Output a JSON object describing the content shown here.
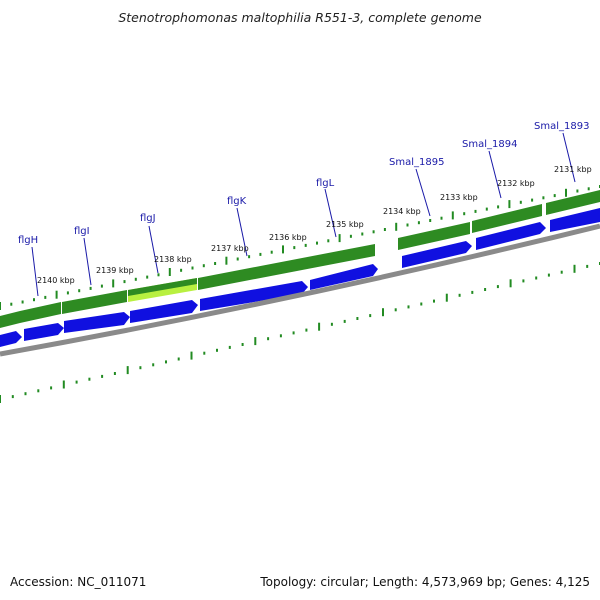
{
  "title": "Stenotrophomonas maltophilia R551-3, complete genome",
  "footer": {
    "accession": "Accession: NC_011071",
    "summary": "Topology: circular; Length: 4,573,969 bp; Genes: 4,125"
  },
  "colors": {
    "gene_forward": "#2e8b22",
    "gene_highlight": "#b8f040",
    "cds": "#1010e0",
    "backbone": "#8a8a8a",
    "ticks": "#228b22",
    "label": "#1a1aa8"
  },
  "genes": [
    {
      "id": "flgH",
      "label": "flgH"
    },
    {
      "id": "flgI",
      "label": "flgI"
    },
    {
      "id": "flgJ",
      "label": "flgJ"
    },
    {
      "id": "flgK",
      "label": "flgK"
    },
    {
      "id": "flgL",
      "label": "flgL"
    },
    {
      "id": "smal1895",
      "label": "Smal_1895"
    },
    {
      "id": "smal1894",
      "label": "Smal_1894"
    },
    {
      "id": "smal1893",
      "label": "Smal_1893"
    }
  ],
  "scale_labels": [
    "2140 kbp",
    "2139 kbp",
    "2138 kbp",
    "2137 kbp",
    "2136 kbp",
    "2135 kbp",
    "2134 kbp",
    "2133 kbp",
    "2132 kbp",
    "2131 kbp"
  ]
}
